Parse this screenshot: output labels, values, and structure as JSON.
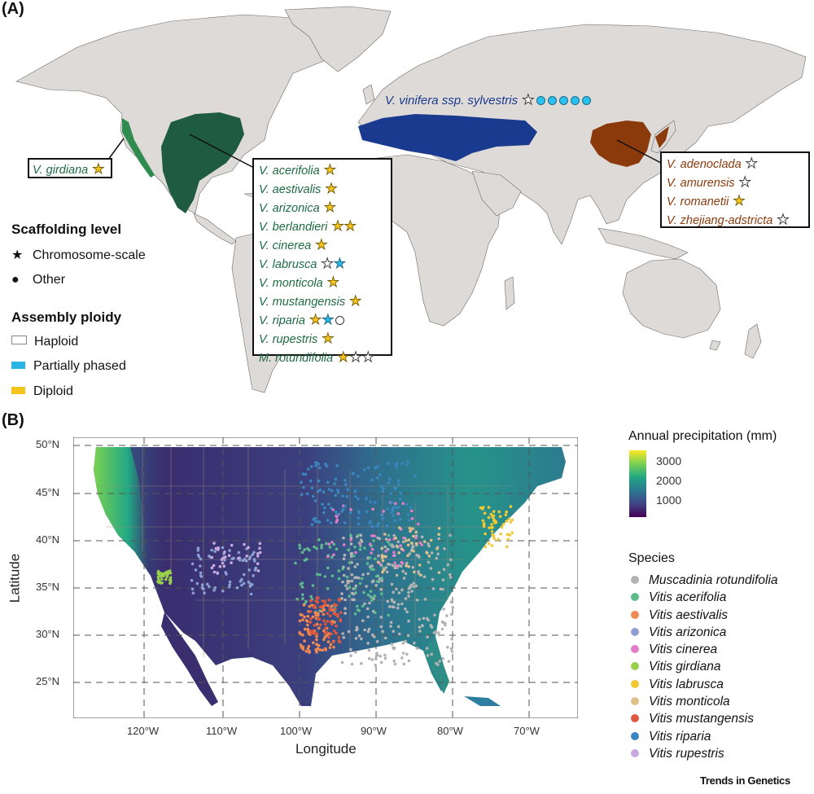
{
  "panel_a": {
    "label": "(A)",
    "vinifera_label": "V. vinifera ssp. sylvestris",
    "vinifera_markers": [
      "white-star",
      "blue-circle",
      "blue-circle",
      "blue-circle",
      "blue-circle",
      "blue-circle"
    ],
    "girdiana_box": {
      "species": "V. girdiana",
      "markers": [
        "yellow-star"
      ]
    },
    "na_box": [
      {
        "species": "V. acerifolia",
        "markers": [
          "yellow-star"
        ]
      },
      {
        "species": "V. aestivalis",
        "markers": [
          "yellow-star"
        ]
      },
      {
        "species": "V. arizonica",
        "markers": [
          "yellow-star"
        ]
      },
      {
        "species": "V. berlandieri",
        "markers": [
          "yellow-star",
          "yellow-star"
        ]
      },
      {
        "species": "V. cinerea",
        "markers": [
          "yellow-star"
        ]
      },
      {
        "species": "V. labrusca",
        "markers": [
          "white-star",
          "blue-star"
        ]
      },
      {
        "species": "V. monticola",
        "markers": [
          "yellow-star"
        ]
      },
      {
        "species": "V. mustangensis",
        "markers": [
          "yellow-star"
        ]
      },
      {
        "species": "V. riparia",
        "markers": [
          "yellow-star",
          "blue-star",
          "white-circle"
        ]
      },
      {
        "species": "V. rupestris",
        "markers": [
          "yellow-star"
        ]
      },
      {
        "species": "M. rotundifolia",
        "markers": [
          "yellow-star",
          "white-star",
          "white-star"
        ]
      }
    ],
    "asia_box": [
      {
        "species": "V. adenoclada",
        "markers": [
          "white-star"
        ]
      },
      {
        "species": "V. amurensis",
        "markers": [
          "white-star"
        ]
      },
      {
        "species": "V. romanetii",
        "markers": [
          "yellow-star"
        ]
      },
      {
        "species": "V. zhejiang-adstricta",
        "markers": [
          "white-star"
        ]
      }
    ],
    "legend": {
      "scaffolding_title": "Scaffolding level",
      "chromosome_scale": "Chromosome-scale",
      "other": "Other",
      "ploidy_title": "Assembly ploidy",
      "haploid": "Haploid",
      "partially_phased": "Partially phased",
      "diploid": "Diploid"
    },
    "colors": {
      "land": "#dedad7",
      "north_america_range": "#1f5b3f",
      "california_range": "#2f8b4f",
      "europe_range": "#1a3a8f",
      "asia_range": "#8b3a0c",
      "green_text": "#1f6b45",
      "blue_text": "#1a3a8f",
      "brown_text": "#8b3a0c"
    }
  },
  "panel_b": {
    "label": "(B)",
    "x_ticks": [
      "120°W",
      "110°W",
      "100°W",
      "90°W",
      "80°W",
      "70°W"
    ],
    "y_ticks": [
      "50°N",
      "45°N",
      "40°N",
      "35°N",
      "30°N",
      "25°N"
    ],
    "x_title": "Longitude",
    "y_title": "Latitude",
    "precip_title": "Annual precipitation (mm)",
    "precip_ticks": [
      "3000",
      "2000",
      "1000"
    ],
    "species_title": "Species",
    "species": [
      {
        "name": "Muscadinia rotundifolia",
        "color": "#b3b3b3"
      },
      {
        "name": "Vitis acerifolia",
        "color": "#5dbb8c"
      },
      {
        "name": "Vitis aestivalis",
        "color": "#f08a52"
      },
      {
        "name": "Vitis arizonica",
        "color": "#8c9fd0"
      },
      {
        "name": "Vitis cinerea",
        "color": "#e57cc7"
      },
      {
        "name": "Vitis girdiana",
        "color": "#98cf4a"
      },
      {
        "name": "Vitis labrusca",
        "color": "#f2c832"
      },
      {
        "name": "Vitis monticola",
        "color": "#dfc08a"
      },
      {
        "name": "Vitis mustangensis",
        "color": "#e0573f"
      },
      {
        "name": "Vitis riparia",
        "color": "#3a86c0"
      },
      {
        "name": "Vitis rupestris",
        "color": "#c9a8e0"
      }
    ]
  },
  "footer": {
    "credit": "Trends in Genetics"
  }
}
